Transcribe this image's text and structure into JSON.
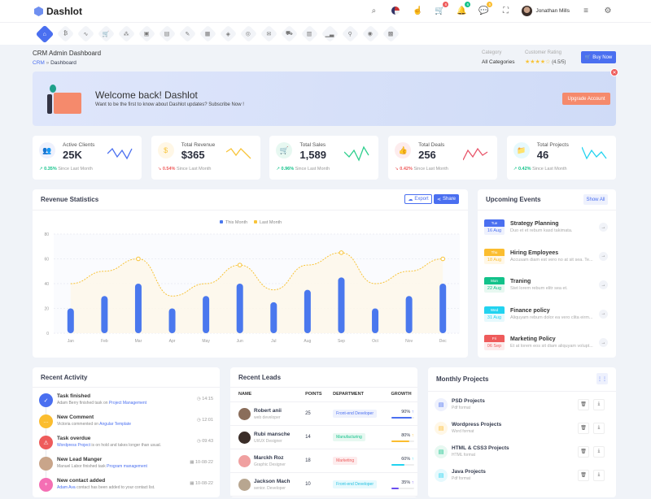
{
  "header": {
    "brand": "Dashlot",
    "user_name": "Jonathan Mills",
    "badges": {
      "cart": "6",
      "notifications": "6",
      "messages": "5"
    }
  },
  "nav_icons": [
    "home-icon",
    "bitcoin-icon",
    "activity-icon",
    "cart-icon",
    "network-icon",
    "briefcase-icon",
    "file-icon",
    "chat-icon",
    "grid-icon",
    "layers-icon",
    "stack-icon",
    "mail-icon",
    "cart-alt-icon",
    "table-icon",
    "chart-icon",
    "map-pin-icon",
    "location-icon",
    "widgets-icon"
  ],
  "page": {
    "title": "CRM Admin Dashboard",
    "breadcrumb": [
      "CRM",
      "Dashboard"
    ],
    "category_label": "Category",
    "category_value": "All Categories",
    "rating_label": "Customer Rating",
    "rating_value": "(4.5/5)",
    "rating": 4.5,
    "buy_now": "Buy Now"
  },
  "banner": {
    "title": "Welcome back! Dashlot",
    "subtitle": "Want to be the first to know about Dashlot updates? Subscribe Now !",
    "button": "Upgrade Account"
  },
  "stats": [
    {
      "label": "Active Clients",
      "value": "25K",
      "change": "0.35%",
      "dir": "up",
      "since": "Since Last Month",
      "color": "#4a6ff0",
      "bg": "#eef1fd",
      "icon": "users-icon",
      "glyph": "👥"
    },
    {
      "label": "Total Revenue",
      "value": "$365",
      "change": "0.54%",
      "dir": "down",
      "since": "Since Last Month",
      "color": "#f8c43a",
      "bg": "#fff7e6",
      "icon": "dollar-icon",
      "glyph": "$"
    },
    {
      "label": "Total Sales",
      "value": "1,589",
      "change": "0.96%",
      "dir": "up",
      "since": "Since Last Month",
      "color": "#2fcf8e",
      "bg": "#e7f8f1",
      "icon": "cart-icon",
      "glyph": "🛒"
    },
    {
      "label": "Total Deals",
      "value": "256",
      "change": "0.42%",
      "dir": "down",
      "since": "Since Last Month",
      "color": "#e8556a",
      "bg": "#fdeced",
      "icon": "thumbs-up-icon",
      "glyph": "👍"
    },
    {
      "label": "Total Projects",
      "value": "46",
      "change": "0.42%",
      "dir": "up",
      "since": "Since Last Month",
      "color": "#22d3f0",
      "bg": "#e6f9fd",
      "icon": "folder-icon",
      "glyph": "📁"
    }
  ],
  "revenue": {
    "title": "Revenue Statistics",
    "export": "Export",
    "share": "Share"
  },
  "chart_data": {
    "type": "bar",
    "title": "Revenue Statistics",
    "categories": [
      "Jan",
      "Feb",
      "Mar",
      "Apr",
      "May",
      "Jun",
      "Jul",
      "Aug",
      "Sep",
      "Oct",
      "Nov",
      "Dec"
    ],
    "series": [
      {
        "name": "This Month",
        "type": "bar",
        "color": "#4a78ee",
        "values": [
          20,
          30,
          40,
          20,
          30,
          40,
          25,
          35,
          45,
          20,
          30,
          40
        ]
      },
      {
        "name": "Last Month",
        "type": "line",
        "color": "#f8c43a",
        "values": [
          40,
          50,
          60,
          30,
          40,
          55,
          35,
          55,
          65,
          40,
          50,
          60
        ]
      }
    ],
    "yticks": [
      0,
      20,
      40,
      60,
      80
    ],
    "ylim": [
      0,
      80
    ],
    "legend": "top-center",
    "grid": true
  },
  "events": {
    "title": "Upcoming Events",
    "show_all": "Show All",
    "items": [
      {
        "day": "Tue",
        "date": "16 Aug",
        "title": "Strategy Planning",
        "desc": "Duo et et rebum kasd takimata.",
        "color": "#4a6ff0",
        "bg": "#eef1fd"
      },
      {
        "day": "Thu",
        "date": "18 Aug",
        "title": "Hiring Employees",
        "desc": "Accusam diam est vero no at sit sea. Te...",
        "color": "#fbbd2f",
        "bg": "#fff7e6"
      },
      {
        "day": "Mon",
        "date": "22 Aug",
        "title": "Traning",
        "desc": "Stet lorem rebum elitr sea et.",
        "color": "#12c28a",
        "bg": "#e7f8f1"
      },
      {
        "day": "Wed",
        "date": "31 Aug",
        "title": "Finance policy",
        "desc": "Aliquyam rebum dolor ea vero clita eirm...",
        "color": "#22d3f0",
        "bg": "#e6f9fd"
      },
      {
        "day": "Fri",
        "date": "06 Sep",
        "title": "Marketing Policy",
        "desc": "Et at lorem eos sit diam aliquyam volupt...",
        "color": "#ee5b5b",
        "bg": "#fdeced"
      }
    ]
  },
  "activity": {
    "title": "Recent Activity",
    "items": [
      {
        "title": "Task finished",
        "pre": "Adam Berry finished task on ",
        "link": "Project Management",
        "post": "",
        "time": "14:15",
        "color": "#4a6ff0",
        "glyph": "✓",
        "time_icon": "clock-icon"
      },
      {
        "title": "New Comment",
        "pre": "Victoria commented on ",
        "link": "Angular Template",
        "post": "",
        "time": "12:01",
        "color": "#fbbd2f",
        "glyph": "…",
        "time_icon": "clock-icon"
      },
      {
        "title": "Task overdue",
        "pre": "",
        "link": "Wordpress Project",
        "post": " is on hold and takes longer than usual.",
        "time": "09:43",
        "color": "#ee5b5b",
        "glyph": "⚠",
        "time_icon": "clock-icon"
      },
      {
        "title": "New Lead Manger",
        "pre": "Manuel Labor finished task ",
        "link": "Program management",
        "post": "",
        "time": "10-08-22",
        "color": "#c9a58a",
        "glyph": "",
        "time_icon": "calendar-icon"
      },
      {
        "title": "New contact added",
        "pre": "",
        "link": "Adam Ava",
        "post": " contact has been added to your contact list.",
        "time": "10-08-22",
        "color": "#f46fb4",
        "glyph": "+",
        "time_icon": "calendar-icon"
      }
    ]
  },
  "leads": {
    "title": "Recent Leads",
    "columns": [
      "NAME",
      "POINTS",
      "DEPARTMENT",
      "GROWTH"
    ],
    "rows": [
      {
        "name": "Robert anii",
        "role": "web developer",
        "points": "25",
        "dept": "Front-end Developer",
        "dept_color": "#4a6ff0",
        "dept_bg": "#eef1fd",
        "growth": "90%",
        "pct": 90,
        "bar": "#4a6ff0",
        "av": "#8a6d5a"
      },
      {
        "name": "Rubi mansche",
        "role": "UI/UX Designer",
        "points": "14",
        "dept": "Manufacturing",
        "dept_color": "#12c28a",
        "dept_bg": "#e7f8f1",
        "growth": "80%",
        "pct": 80,
        "bar": "#fbbd2f",
        "av": "#3a2d28"
      },
      {
        "name": "Marckh Roz",
        "role": "Graphic Designer",
        "points": "18",
        "dept": "Marketing",
        "dept_color": "#ee5b5b",
        "dept_bg": "#fdeced",
        "growth": "60%",
        "pct": 60,
        "bar": "#22d3f0",
        "av": "#f0a0a0"
      },
      {
        "name": "Jackson Mach",
        "role": "senior. Developer",
        "points": "10",
        "dept": "Front-end Developer",
        "dept_color": "#22c0e0",
        "dept_bg": "#e6f9fd",
        "growth": "35%",
        "pct": 35,
        "bar": "#6a4df0",
        "av": "#b8a690"
      }
    ]
  },
  "projects": {
    "title": "Monthly Projects",
    "items": [
      {
        "title": "PSD Projects",
        "format": "Pdf format",
        "color": "#4a6ff0",
        "bg": "#eef1fd",
        "icon": "psd-file-icon"
      },
      {
        "title": "Wordpress Projects",
        "format": "Word format",
        "color": "#fbbd2f",
        "bg": "#fff7e6",
        "icon": "wordpress-icon"
      },
      {
        "title": "HTML & CSS3 Projects",
        "format": "HTML format",
        "color": "#12c28a",
        "bg": "#e7f8f1",
        "icon": "html-file-icon"
      },
      {
        "title": "Java Projects",
        "format": "Pdf format",
        "color": "#22d3f0",
        "bg": "#e6f9fd",
        "icon": "java-file-icon"
      }
    ]
  }
}
